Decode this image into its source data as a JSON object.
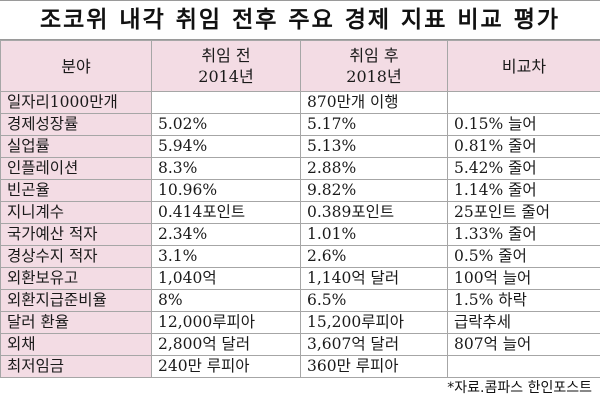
{
  "title": "조코위 내각 취임 전후 주요 경제 지표 비교 평가",
  "header": {
    "col1": "분야",
    "col2_line1": "취임 전",
    "col2_line2": "2014년",
    "col3_line1": "취임 후",
    "col3_line2": "2018년",
    "col4": "비교차"
  },
  "rows": [
    {
      "field": "일자리1000만개",
      "before": "",
      "after": "870만개 이행",
      "diff": ""
    },
    {
      "field": "경제성장률",
      "before": "5.02%",
      "after": "5.17%",
      "diff": "0.15% 늘어"
    },
    {
      "field": "실업률",
      "before": "5.94%",
      "after": "5.13%",
      "diff": "0.81% 줄어"
    },
    {
      "field": "인플레이션",
      "before": "8.3%",
      "after": "2.88%",
      "diff": "5.42% 줄어"
    },
    {
      "field": "빈곤율",
      "before": "10.96%",
      "after": "9.82%",
      "diff": "1.14% 줄어"
    },
    {
      "field": "지니계수",
      "before": "0.414포인트",
      "after": "0.389포인트",
      "diff": "25포인트 줄어"
    },
    {
      "field": "국가예산 적자",
      "before": "2.34%",
      "after": "1.01%",
      "diff": "1.33% 줄어"
    },
    {
      "field": "경상수지 적자",
      "before": "3.1%",
      "after": "2.6%",
      "diff": "0.5% 줄어"
    },
    {
      "field": "외환보유고",
      "before": "1,040억",
      "after": "1,140억 달러",
      "diff": "100억 늘어"
    },
    {
      "field": "외환지급준비율",
      "before": "8%",
      "after": "6.5%",
      "diff": "1.5% 하락"
    },
    {
      "field": "달러 환율",
      "before": "12,000루피아",
      "after": "15,200루피아",
      "diff": "급락추세"
    },
    {
      "field": "외채",
      "before": "2,800억 달러",
      "after": "3,607억 달러",
      "diff": "807억 늘어"
    },
    {
      "field": "최저임금",
      "before": "240만 루피아",
      "after": "360만 루피아",
      "diff": ""
    }
  ],
  "footer": "*자료.콤파스 한인포스트",
  "colors": {
    "header_bg": "#f3dce4",
    "border": "#a6a6a6"
  }
}
